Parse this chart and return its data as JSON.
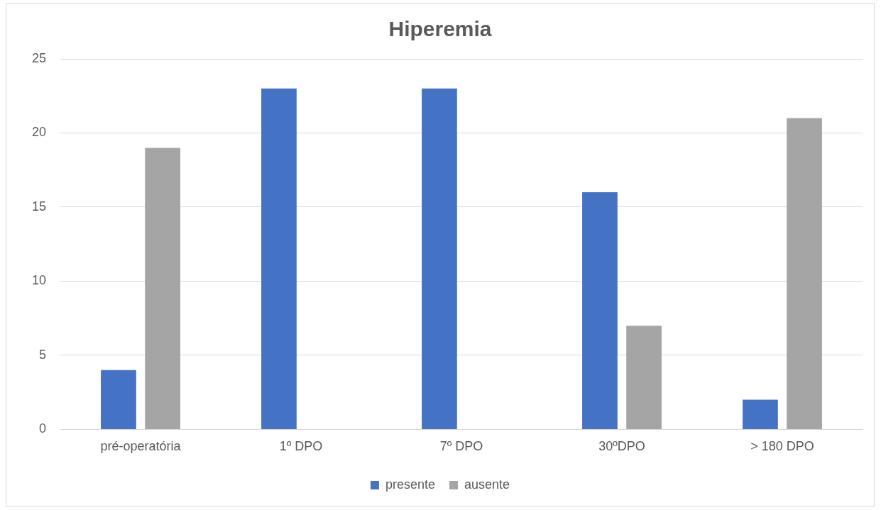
{
  "chart_data": {
    "type": "bar",
    "title": "Hiperemia",
    "categories": [
      "pré-operatória",
      "1º DPO",
      "7º DPO",
      "30ºDPO",
      "> 180 DPO"
    ],
    "series": [
      {
        "name": "presente",
        "color": "#4472c4",
        "values": [
          4,
          23,
          23,
          16,
          2
        ]
      },
      {
        "name": "ausente",
        "color": "#a5a5a5",
        "values": [
          19,
          0,
          0,
          7,
          21
        ]
      }
    ],
    "ylim": [
      0,
      25
    ],
    "yticks": [
      0,
      5,
      10,
      15,
      20,
      25
    ],
    "grid": "y",
    "legend": "bottom"
  }
}
